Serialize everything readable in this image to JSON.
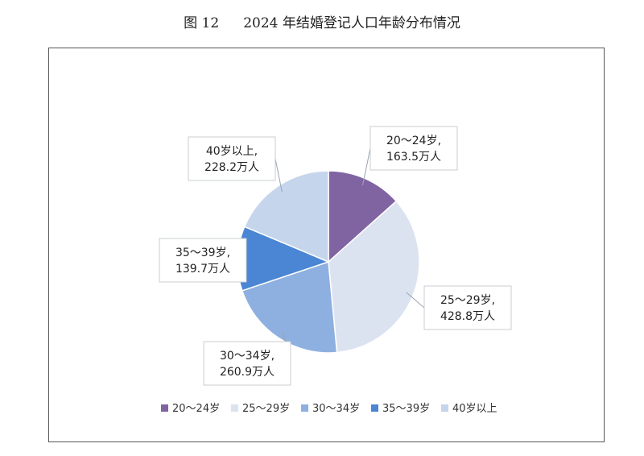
{
  "figure": {
    "number": "图 12",
    "title": "2024 年结婚登记人口年龄分布情况"
  },
  "chart_data": {
    "type": "pie",
    "unit": "万人",
    "start_angle_deg": 0,
    "direction": "clockwise",
    "slices": [
      {
        "name": "20～24岁",
        "value": 163.5,
        "color": "#8064a2",
        "label_line1": "20～24岁,",
        "label_line2": "163.5万人"
      },
      {
        "name": "25～29岁",
        "value": 428.8,
        "color": "#dce3f0",
        "label_line1": "25～29岁,",
        "label_line2": "428.8万人"
      },
      {
        "name": "30～34岁",
        "value": 260.9,
        "color": "#8eb0e0",
        "label_line1": "30～34岁,",
        "label_line2": "260.9万人"
      },
      {
        "name": "35～39岁",
        "value": 139.7,
        "color": "#4a86d4",
        "label_line1": "35～39岁,",
        "label_line2": "139.7万人"
      },
      {
        "name": "40岁以上",
        "value": 228.2,
        "color": "#c5d5ec",
        "label_line1": "40岁以上,",
        "label_line2": "228.2万人"
      }
    ],
    "legend": {
      "position": "bottom",
      "entries": [
        "20～24岁",
        "25～29岁",
        "30～34岁",
        "35～39岁",
        "40岁以上"
      ]
    }
  }
}
